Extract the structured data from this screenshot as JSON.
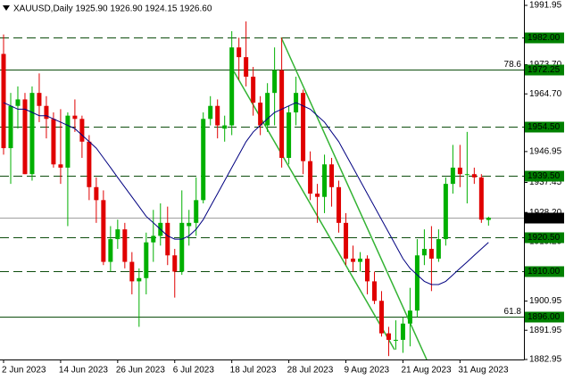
{
  "chart_data": {
    "type": "candlestick",
    "title": "XAUUSD,Daily  1925.90 1926.90 1924.15 1926.60",
    "categories": [
      "2 Jun 2023",
      null,
      null,
      null,
      null,
      null,
      null,
      null,
      "14 Jun 2023",
      null,
      null,
      null,
      null,
      null,
      null,
      null,
      "26 Jun 2023",
      null,
      null,
      null,
      null,
      null,
      null,
      null,
      "6 Jul 2023",
      null,
      null,
      null,
      null,
      null,
      null,
      null,
      "18 Jul 2023",
      null,
      null,
      null,
      null,
      null,
      null,
      null,
      "28 Jul 2023",
      null,
      null,
      null,
      null,
      null,
      null,
      null,
      "9 Aug 2023",
      null,
      null,
      null,
      null,
      null,
      null,
      null,
      "21 Aug 2023",
      null,
      null,
      null,
      null,
      null,
      null,
      null,
      "31 Aug 2023",
      null,
      null,
      null,
      null
    ],
    "open": [
      1977,
      1948,
      1961,
      1963,
      1940,
      1965,
      1961,
      1957,
      1943,
      1942,
      1958,
      1957,
      1950,
      1936,
      1932,
      1913,
      1920,
      1923,
      1913,
      1907,
      1908,
      1919,
      1921,
      1925,
      1915,
      1910,
      1924,
      1925,
      1932,
      1957,
      1961,
      1954,
      1955,
      1979,
      1976,
      1970,
      1962,
      1955,
      1965,
      1972,
      1945,
      1959,
      1965,
      1944,
      1934,
      1933,
      1943,
      1936,
      1925,
      1914,
      1913,
      1914,
      1907,
      1901,
      1891,
      1889,
      1889,
      1894,
      1898,
      1915,
      1917,
      1914,
      1920,
      1937,
      1942,
      1940,
      1940,
      1939,
      1925.9
    ],
    "high": [
      1983,
      1965,
      1967,
      1965,
      1967,
      1971,
      1964,
      1959,
      1960,
      1959,
      1963,
      1958,
      1952,
      1939,
      1935,
      1924,
      1926,
      1925,
      1916,
      1911,
      1922,
      1929,
      1931,
      1930,
      1917,
      1935,
      1929,
      1939,
      1959,
      1964,
      1963,
      1958,
      1984,
      1982,
      1987,
      1973,
      1964,
      1968,
      1979,
      1982,
      1961,
      1970,
      1966,
      1947,
      1937,
      1946,
      1945,
      1938,
      1928,
      1918,
      1916,
      1915,
      1910,
      1904,
      1893,
      1895,
      1896,
      1905,
      1920,
      1923,
      1924,
      1923,
      1939,
      1949,
      1949,
      1953,
      1942,
      1940,
      1926.9
    ],
    "low": [
      1946,
      1937,
      1954,
      1940,
      1938,
      1956,
      1951,
      1942,
      1937,
      1924,
      1953,
      1945,
      1932,
      1925,
      1912,
      1910,
      1917,
      1911,
      1903,
      1893,
      1903,
      1913,
      1918,
      1912,
      1902,
      1909,
      1918,
      1921,
      1931,
      1955,
      1951,
      1950,
      1952,
      1969,
      1967,
      1958,
      1952,
      1953,
      1955,
      1942,
      1943,
      1955,
      1940,
      1932,
      1925,
      1928,
      1930,
      1922,
      1912,
      1910,
      1910,
      1903,
      1900,
      1890,
      1884,
      1886,
      1885,
      1887,
      1896,
      1912,
      1904,
      1913,
      1918,
      1934,
      1936,
      1931,
      1937,
      1925,
      1924.15
    ],
    "close": [
      1948,
      1961,
      1963,
      1940,
      1965,
      1961,
      1957,
      1943,
      1942,
      1958,
      1957,
      1950,
      1936,
      1932,
      1913,
      1920,
      1923,
      1913,
      1907,
      1908,
      1919,
      1921,
      1925,
      1915,
      1910,
      1925,
      1925,
      1932,
      1957,
      1961,
      1955,
      1955,
      1979,
      1976,
      1970,
      1962,
      1955,
      1965,
      1972,
      1945,
      1959,
      1965,
      1944,
      1934,
      1933,
      1943,
      1936,
      1925,
      1914,
      1913,
      1914,
      1907,
      1901,
      1891,
      1889,
      1889,
      1894,
      1898,
      1915,
      1917,
      1914,
      1920,
      1937,
      1942,
      1940,
      1940,
      1939,
      1926,
      1926.6
    ],
    "up_color": "#00b000",
    "down_color": "#e00000",
    "moving_average": {
      "color": "#000080",
      "values": [
        1962,
        1961,
        1960,
        1960,
        1959,
        1958,
        1958,
        1957,
        1956,
        1955,
        1954,
        1952,
        1950,
        1948,
        1945,
        1942,
        1939,
        1936,
        1933,
        1930,
        1927,
        1925,
        1923,
        1921,
        1920,
        1920,
        1921,
        1923,
        1926,
        1930,
        1934,
        1938,
        1942,
        1946,
        1950,
        1953,
        1955,
        1957,
        1959,
        1960,
        1961,
        1962,
        1961,
        1960,
        1958,
        1956,
        1953,
        1950,
        1946,
        1942,
        1938,
        1934,
        1930,
        1926,
        1922,
        1918,
        1914,
        1911,
        1909,
        1907,
        1906,
        1906,
        1907,
        1909,
        1911,
        1913,
        1915,
        1917,
        1919
      ]
    },
    "ylim": [
      1882.95,
      1991.95
    ],
    "yticks": [
      1991.95,
      {
        "value": 1973.7,
        "label": "1973.70"
      },
      {
        "value": 1964.7,
        "label": "1964.70"
      },
      1946.95,
      1937.45,
      {
        "value": 1928.2,
        "label": "1928.20"
      },
      {
        "value": 1919.2,
        "label": "1919.20"
      },
      1900.95,
      1891.95,
      1882.95
    ],
    "levels": [
      {
        "value": 1982,
        "label": "1982.00",
        "style": "dashed",
        "color": "#0d4d0d",
        "label_color": "#008000"
      },
      {
        "value": 1972.25,
        "label": "1972.25",
        "style": "solid",
        "color": "#0d4d0d",
        "label_color": "#008000",
        "annotation": "78.6"
      },
      {
        "value": 1954.5,
        "label": "1954.50",
        "style": "dashed",
        "color": "#0d4d0d",
        "label_color": "#008000"
      },
      {
        "value": 1939.5,
        "label": "1939.50",
        "style": "dashed",
        "color": "#0d4d0d",
        "label_color": "#008000"
      },
      {
        "value": 1926.6,
        "label": "1926.60",
        "style": "solid",
        "color": "#a0a0a0",
        "label_color": "#000000"
      },
      {
        "value": 1920.5,
        "label": "1920.50",
        "style": "dashed",
        "color": "#0d4d0d",
        "label_color": "#008000"
      },
      {
        "value": 1910,
        "label": "1910.00",
        "style": "dashed",
        "color": "#0d4d0d",
        "label_color": "#008000"
      },
      {
        "value": 1896,
        "label": "1896.00",
        "style": "solid",
        "color": "#0d4d0d",
        "label_color": "#008000",
        "annotation": "61.8"
      }
    ]
  }
}
